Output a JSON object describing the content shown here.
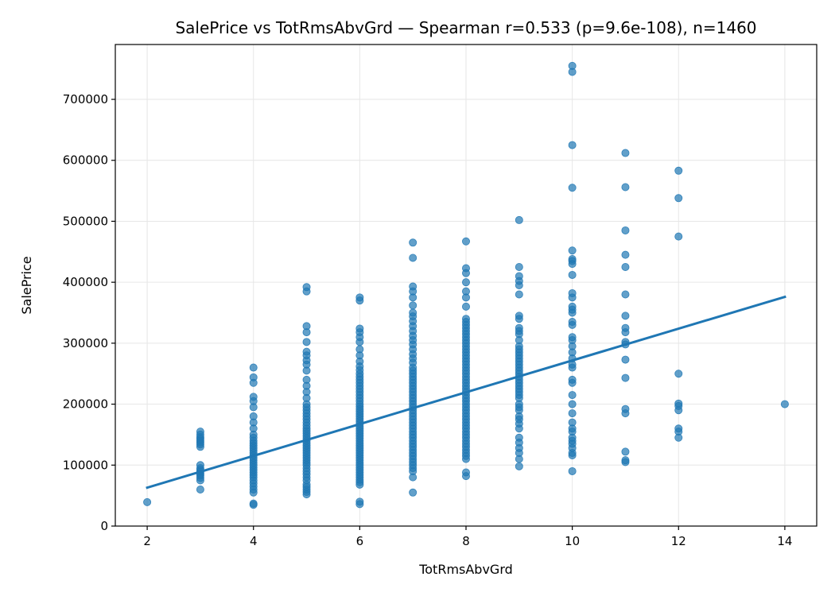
{
  "chart_data": {
    "type": "scatter",
    "title": "SalePrice vs TotRmsAbvGrd — Spearman r=0.533 (p=9.6e-108), n=1460",
    "xlabel": "TotRmsAbvGrd",
    "ylabel": "SalePrice",
    "xlim": [
      1.4,
      14.6
    ],
    "ylim": [
      0,
      790000
    ],
    "x_ticks": [
      2,
      4,
      6,
      8,
      10,
      12,
      14
    ],
    "y_ticks": [
      0,
      100000,
      200000,
      300000,
      400000,
      500000,
      600000,
      700000
    ],
    "x_tick_labels": [
      "2",
      "4",
      "6",
      "8",
      "10",
      "12",
      "14"
    ],
    "y_tick_labels": [
      "0",
      "100000",
      "200000",
      "300000",
      "400000",
      "500000",
      "600000",
      "700000"
    ],
    "grid": true,
    "point_color": "#1f77b4",
    "line_color": "#1f77b4",
    "series": [
      {
        "points_by_x": [
          {
            "x": 2,
            "y": [
              39300
            ]
          },
          {
            "x": 3,
            "y": [
              60000,
              75000,
              79000,
              83000,
              86000,
              89000,
              92000,
              95000,
              100000,
              130000,
              134000,
              137000,
              140000,
              143000,
              146000,
              150000,
              155000
            ]
          },
          {
            "x": 4,
            "y": [
              35000,
              37000,
              55000,
              60000,
              65000,
              70000,
              75000,
              80000,
              84000,
              88000,
              92000,
              96000,
              100000,
              104000,
              108000,
              112000,
              116000,
              120000,
              124000,
              128000,
              132000,
              136000,
              140000,
              145000,
              150000,
              160000,
              170000,
              180000,
              195000,
              205000,
              212000,
              235000,
              244000,
              260000
            ]
          },
          {
            "x": 5,
            "y": [
              52000,
              56000,
              60000,
              64000,
              68000,
              75000,
              80000,
              85000,
              90000,
              95000,
              100000,
              104000,
              108000,
              112000,
              116000,
              120000,
              124000,
              128000,
              132000,
              136000,
              140000,
              144000,
              148000,
              152000,
              156000,
              160000,
              165000,
              170000,
              175000,
              180000,
              185000,
              190000,
              195000,
              200000,
              210000,
              220000,
              230000,
              240000,
              255000,
              265000,
              272000,
              280000,
              286000,
              302000,
              318000,
              328000,
              385000,
              392000
            ]
          },
          {
            "x": 6,
            "y": [
              36000,
              40000,
              68000,
              72000,
              76000,
              80000,
              84000,
              88000,
              92000,
              96000,
              100000,
              104000,
              108000,
              112000,
              116000,
              120000,
              124000,
              128000,
              132000,
              136000,
              140000,
              144000,
              148000,
              152000,
              156000,
              160000,
              164000,
              168000,
              172000,
              176000,
              180000,
              184000,
              188000,
              192000,
              196000,
              200000,
              205000,
              210000,
              215000,
              220000,
              225000,
              230000,
              235000,
              240000,
              245000,
              250000,
              256000,
              262000,
              270000,
              280000,
              290000,
              302000,
              310000,
              318000,
              324000,
              370000,
              375000
            ]
          },
          {
            "x": 7,
            "y": [
              55000,
              80000,
              90000,
              95000,
              100000,
              105000,
              110000,
              115000,
              120000,
              125000,
              130000,
              135000,
              140000,
              145000,
              150000,
              155000,
              160000,
              165000,
              170000,
              175000,
              180000,
              185000,
              190000,
              195000,
              200000,
              205000,
              210000,
              215000,
              220000,
              225000,
              230000,
              235000,
              240000,
              245000,
              250000,
              255000,
              260000,
              268000,
              275000,
              282000,
              290000,
              298000,
              305000,
              312000,
              320000,
              328000,
              336000,
              344000,
              350000,
              362000,
              375000,
              385000,
              393000,
              440000,
              465000
            ]
          },
          {
            "x": 8,
            "y": [
              82000,
              88000,
              110000,
              115000,
              120000,
              125000,
              130000,
              135000,
              140000,
              145000,
              150000,
              155000,
              160000,
              165000,
              170000,
              175000,
              180000,
              185000,
              190000,
              195000,
              200000,
              205000,
              210000,
              215000,
              220000,
              225000,
              230000,
              235000,
              240000,
              245000,
              250000,
              255000,
              260000,
              265000,
              270000,
              275000,
              280000,
              285000,
              290000,
              295000,
              300000,
              305000,
              310000,
              315000,
              320000,
              325000,
              330000,
              335000,
              340000,
              360000,
              375000,
              385000,
              400000,
              415000,
              423000,
              467000
            ]
          },
          {
            "x": 9,
            "y": [
              98000,
              110000,
              120000,
              128000,
              137000,
              145000,
              160000,
              168000,
              175000,
              180000,
              190000,
              195000,
              200000,
              210000,
              215000,
              220000,
              225000,
              230000,
              235000,
              240000,
              245000,
              250000,
              255000,
              260000,
              265000,
              270000,
              275000,
              280000,
              285000,
              290000,
              295000,
              305000,
              315000,
              320000,
              325000,
              340000,
              345000,
              380000,
              395000,
              402000,
              410000,
              425000,
              502000
            ]
          },
          {
            "x": 10,
            "y": [
              90000,
              116000,
              120000,
              128000,
              135000,
              140000,
              145000,
              155000,
              160000,
              170000,
              185000,
              200000,
              215000,
              235000,
              240000,
              260000,
              265000,
              275000,
              285000,
              295000,
              305000,
              310000,
              330000,
              335000,
              350000,
              355000,
              360000,
              375000,
              382000,
              412000,
              430000,
              435000,
              438000,
              452000,
              555000,
              625000,
              745000,
              755000
            ]
          },
          {
            "x": 11,
            "y": [
              105000,
              108000,
              122000,
              185000,
              192000,
              243000,
              273000,
              298000,
              302000,
              318000,
              325000,
              345000,
              380000,
              425000,
              445000,
              485000,
              556000,
              612000
            ]
          },
          {
            "x": 12,
            "y": [
              145000,
              155000,
              160000,
              190000,
              197000,
              201000,
              250000,
              475000,
              538000,
              583000
            ]
          },
          {
            "x": 14,
            "y": [
              200000
            ]
          }
        ]
      }
    ],
    "trend_line": {
      "x": [
        2,
        14
      ],
      "y": [
        63000,
        376000
      ]
    }
  }
}
